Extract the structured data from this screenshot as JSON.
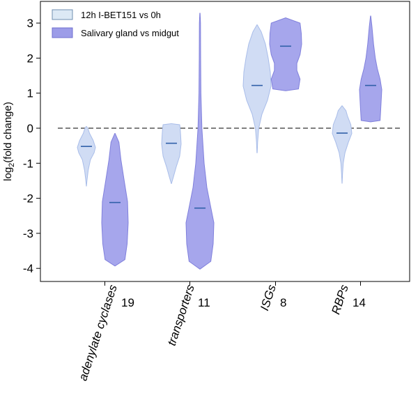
{
  "chart_data": {
    "type": "violin",
    "title": "",
    "ylabel_main": "log",
    "ylabel_sub": "2",
    "ylabel_rest": "(fold change)",
    "ylim": [
      -4.4,
      3.3
    ],
    "yticks": [
      -4,
      -3,
      -2,
      -1,
      0,
      1,
      2,
      3
    ],
    "reference_line": 0,
    "colors": {
      "series1_fill": "#d0dcf4",
      "series1_edge": "#a9bde9",
      "series2_fill": "#a6a6ec",
      "series2_edge": "#8080dc",
      "median": "#2f5fa8",
      "legend1_fill": "#dce9f5",
      "legend1_edge": "#6f8fb0",
      "legend2_fill": "#9c9ce8",
      "legend2_edge": "#6f6fcf"
    },
    "legend": [
      {
        "label": "12h I-BET151 vs 0h"
      },
      {
        "label": "Salivary gland vs midgut"
      }
    ],
    "categories": [
      {
        "name": "adenylate cyclases",
        "count": "19"
      },
      {
        "name": "transporters",
        "count": "11"
      },
      {
        "name": "ISGs",
        "count": "8"
      },
      {
        "name": "RBPs",
        "count": "14"
      }
    ],
    "series": [
      {
        "name": "12h I-BET151 vs 0h",
        "violins": [
          {
            "median": -0.52,
            "profile": [
              [
                -1.65,
                0.01
              ],
              [
                -1.5,
                0.06
              ],
              [
                -1.2,
                0.2
              ],
              [
                -0.9,
                0.45
              ],
              [
                -0.7,
                0.85
              ],
              [
                -0.55,
                1.0
              ],
              [
                -0.35,
                0.75
              ],
              [
                -0.15,
                0.35
              ],
              [
                0.0,
                0.15
              ],
              [
                0.05,
                0.01
              ]
            ]
          },
          {
            "median": -0.43,
            "profile": [
              [
                -1.58,
                0.01
              ],
              [
                -1.4,
                0.2
              ],
              [
                -1.1,
                0.5
              ],
              [
                -0.8,
                0.85
              ],
              [
                -0.45,
                1.0
              ],
              [
                -0.2,
                0.95
              ],
              [
                0.0,
                0.9
              ],
              [
                0.1,
                0.85
              ],
              [
                0.13,
                0.01
              ]
            ]
          },
          {
            "median": 1.22,
            "profile": [
              [
                -0.7,
                0.01
              ],
              [
                -0.4,
                0.04
              ],
              [
                0.0,
                0.12
              ],
              [
                0.4,
                0.35
              ],
              [
                0.8,
                0.75
              ],
              [
                1.2,
                1.0
              ],
              [
                1.6,
                0.95
              ],
              [
                2.0,
                0.8
              ],
              [
                2.4,
                0.6
              ],
              [
                2.75,
                0.3
              ],
              [
                2.95,
                0.01
              ]
            ]
          },
          {
            "median": -0.14,
            "profile": [
              [
                -1.57,
                0.01
              ],
              [
                -1.3,
                0.05
              ],
              [
                -1.0,
                0.12
              ],
              [
                -0.7,
                0.3
              ],
              [
                -0.4,
                0.65
              ],
              [
                -0.15,
                1.0
              ],
              [
                0.1,
                0.9
              ],
              [
                0.35,
                0.55
              ],
              [
                0.5,
                0.4
              ],
              [
                0.64,
                0.01
              ]
            ]
          }
        ]
      },
      {
        "name": "Salivary gland vs midgut",
        "violins": [
          {
            "median": -2.12,
            "profile": [
              [
                -3.93,
                0.01
              ],
              [
                -3.75,
                0.75
              ],
              [
                -3.3,
                0.92
              ],
              [
                -2.7,
                1.0
              ],
              [
                -2.1,
                0.95
              ],
              [
                -1.5,
                0.7
              ],
              [
                -0.9,
                0.45
              ],
              [
                -0.4,
                0.3
              ],
              [
                -0.15,
                0.01
              ]
            ]
          },
          {
            "median": -2.28,
            "profile": [
              [
                -4.02,
                0.01
              ],
              [
                -3.8,
                0.78
              ],
              [
                -3.3,
                0.95
              ],
              [
                -2.7,
                1.0
              ],
              [
                -2.2,
                0.75
              ],
              [
                -1.7,
                0.5
              ],
              [
                -1.0,
                0.3
              ],
              [
                0.0,
                0.14
              ],
              [
                1.0,
                0.07
              ],
              [
                2.0,
                0.05
              ],
              [
                3.0,
                0.04
              ],
              [
                3.28,
                0.01
              ]
            ]
          },
          {
            "median": 2.34,
            "profile": [
              [
                1.07,
                0.01
              ],
              [
                1.12,
                0.8
              ],
              [
                1.4,
                0.9
              ],
              [
                1.65,
                0.7
              ],
              [
                1.85,
                0.7
              ],
              [
                2.1,
                0.9
              ],
              [
                2.4,
                1.0
              ],
              [
                2.7,
                0.98
              ],
              [
                3.0,
                0.9
              ],
              [
                3.15,
                0.01
              ]
            ]
          },
          {
            "median": 1.22,
            "profile": [
              [
                0.18,
                0.01
              ],
              [
                0.22,
                0.85
              ],
              [
                0.5,
                0.9
              ],
              [
                0.8,
                0.95
              ],
              [
                1.1,
                1.0
              ],
              [
                1.4,
                0.85
              ],
              [
                1.7,
                0.6
              ],
              [
                2.0,
                0.42
              ],
              [
                2.4,
                0.26
              ],
              [
                2.9,
                0.12
              ],
              [
                3.2,
                0.01
              ]
            ]
          }
        ]
      }
    ]
  }
}
